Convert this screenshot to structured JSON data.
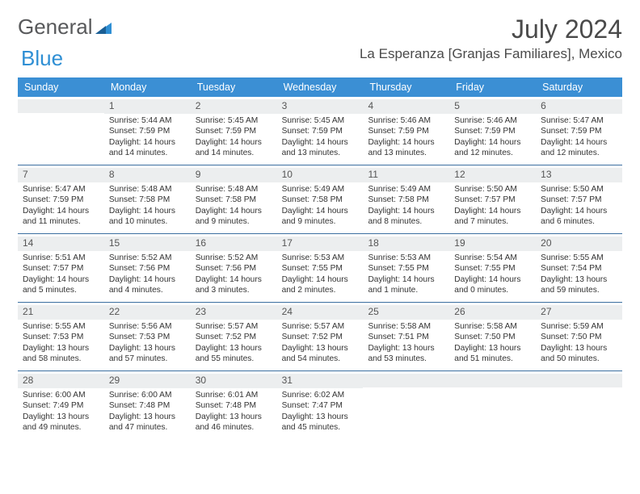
{
  "logo": {
    "part1": "General",
    "part2": "Blue"
  },
  "title": "July 2024",
  "location": "La Esperanza [Granjas Familiares], Mexico",
  "colors": {
    "header_bg": "#3b8fd4",
    "header_text": "#ffffff",
    "daynum_bg": "#eceeef",
    "border": "#3b6fa0",
    "logo_gray": "#58595b",
    "logo_blue": "#2f8fd4"
  },
  "day_headers": [
    "Sunday",
    "Monday",
    "Tuesday",
    "Wednesday",
    "Thursday",
    "Friday",
    "Saturday"
  ],
  "weeks": [
    [
      {
        "day": "",
        "lines": []
      },
      {
        "day": "1",
        "lines": [
          "Sunrise: 5:44 AM",
          "Sunset: 7:59 PM",
          "Daylight: 14 hours and 14 minutes."
        ]
      },
      {
        "day": "2",
        "lines": [
          "Sunrise: 5:45 AM",
          "Sunset: 7:59 PM",
          "Daylight: 14 hours and 14 minutes."
        ]
      },
      {
        "day": "3",
        "lines": [
          "Sunrise: 5:45 AM",
          "Sunset: 7:59 PM",
          "Daylight: 14 hours and 13 minutes."
        ]
      },
      {
        "day": "4",
        "lines": [
          "Sunrise: 5:46 AM",
          "Sunset: 7:59 PM",
          "Daylight: 14 hours and 13 minutes."
        ]
      },
      {
        "day": "5",
        "lines": [
          "Sunrise: 5:46 AM",
          "Sunset: 7:59 PM",
          "Daylight: 14 hours and 12 minutes."
        ]
      },
      {
        "day": "6",
        "lines": [
          "Sunrise: 5:47 AM",
          "Sunset: 7:59 PM",
          "Daylight: 14 hours and 12 minutes."
        ]
      }
    ],
    [
      {
        "day": "7",
        "lines": [
          "Sunrise: 5:47 AM",
          "Sunset: 7:59 PM",
          "Daylight: 14 hours and 11 minutes."
        ]
      },
      {
        "day": "8",
        "lines": [
          "Sunrise: 5:48 AM",
          "Sunset: 7:58 PM",
          "Daylight: 14 hours and 10 minutes."
        ]
      },
      {
        "day": "9",
        "lines": [
          "Sunrise: 5:48 AM",
          "Sunset: 7:58 PM",
          "Daylight: 14 hours and 9 minutes."
        ]
      },
      {
        "day": "10",
        "lines": [
          "Sunrise: 5:49 AM",
          "Sunset: 7:58 PM",
          "Daylight: 14 hours and 9 minutes."
        ]
      },
      {
        "day": "11",
        "lines": [
          "Sunrise: 5:49 AM",
          "Sunset: 7:58 PM",
          "Daylight: 14 hours and 8 minutes."
        ]
      },
      {
        "day": "12",
        "lines": [
          "Sunrise: 5:50 AM",
          "Sunset: 7:57 PM",
          "Daylight: 14 hours and 7 minutes."
        ]
      },
      {
        "day": "13",
        "lines": [
          "Sunrise: 5:50 AM",
          "Sunset: 7:57 PM",
          "Daylight: 14 hours and 6 minutes."
        ]
      }
    ],
    [
      {
        "day": "14",
        "lines": [
          "Sunrise: 5:51 AM",
          "Sunset: 7:57 PM",
          "Daylight: 14 hours and 5 minutes."
        ]
      },
      {
        "day": "15",
        "lines": [
          "Sunrise: 5:52 AM",
          "Sunset: 7:56 PM",
          "Daylight: 14 hours and 4 minutes."
        ]
      },
      {
        "day": "16",
        "lines": [
          "Sunrise: 5:52 AM",
          "Sunset: 7:56 PM",
          "Daylight: 14 hours and 3 minutes."
        ]
      },
      {
        "day": "17",
        "lines": [
          "Sunrise: 5:53 AM",
          "Sunset: 7:55 PM",
          "Daylight: 14 hours and 2 minutes."
        ]
      },
      {
        "day": "18",
        "lines": [
          "Sunrise: 5:53 AM",
          "Sunset: 7:55 PM",
          "Daylight: 14 hours and 1 minute."
        ]
      },
      {
        "day": "19",
        "lines": [
          "Sunrise: 5:54 AM",
          "Sunset: 7:55 PM",
          "Daylight: 14 hours and 0 minutes."
        ]
      },
      {
        "day": "20",
        "lines": [
          "Sunrise: 5:55 AM",
          "Sunset: 7:54 PM",
          "Daylight: 13 hours and 59 minutes."
        ]
      }
    ],
    [
      {
        "day": "21",
        "lines": [
          "Sunrise: 5:55 AM",
          "Sunset: 7:53 PM",
          "Daylight: 13 hours and 58 minutes."
        ]
      },
      {
        "day": "22",
        "lines": [
          "Sunrise: 5:56 AM",
          "Sunset: 7:53 PM",
          "Daylight: 13 hours and 57 minutes."
        ]
      },
      {
        "day": "23",
        "lines": [
          "Sunrise: 5:57 AM",
          "Sunset: 7:52 PM",
          "Daylight: 13 hours and 55 minutes."
        ]
      },
      {
        "day": "24",
        "lines": [
          "Sunrise: 5:57 AM",
          "Sunset: 7:52 PM",
          "Daylight: 13 hours and 54 minutes."
        ]
      },
      {
        "day": "25",
        "lines": [
          "Sunrise: 5:58 AM",
          "Sunset: 7:51 PM",
          "Daylight: 13 hours and 53 minutes."
        ]
      },
      {
        "day": "26",
        "lines": [
          "Sunrise: 5:58 AM",
          "Sunset: 7:50 PM",
          "Daylight: 13 hours and 51 minutes."
        ]
      },
      {
        "day": "27",
        "lines": [
          "Sunrise: 5:59 AM",
          "Sunset: 7:50 PM",
          "Daylight: 13 hours and 50 minutes."
        ]
      }
    ],
    [
      {
        "day": "28",
        "lines": [
          "Sunrise: 6:00 AM",
          "Sunset: 7:49 PM",
          "Daylight: 13 hours and 49 minutes."
        ]
      },
      {
        "day": "29",
        "lines": [
          "Sunrise: 6:00 AM",
          "Sunset: 7:48 PM",
          "Daylight: 13 hours and 47 minutes."
        ]
      },
      {
        "day": "30",
        "lines": [
          "Sunrise: 6:01 AM",
          "Sunset: 7:48 PM",
          "Daylight: 13 hours and 46 minutes."
        ]
      },
      {
        "day": "31",
        "lines": [
          "Sunrise: 6:02 AM",
          "Sunset: 7:47 PM",
          "Daylight: 13 hours and 45 minutes."
        ]
      },
      {
        "day": "",
        "lines": []
      },
      {
        "day": "",
        "lines": []
      },
      {
        "day": "",
        "lines": []
      }
    ]
  ]
}
